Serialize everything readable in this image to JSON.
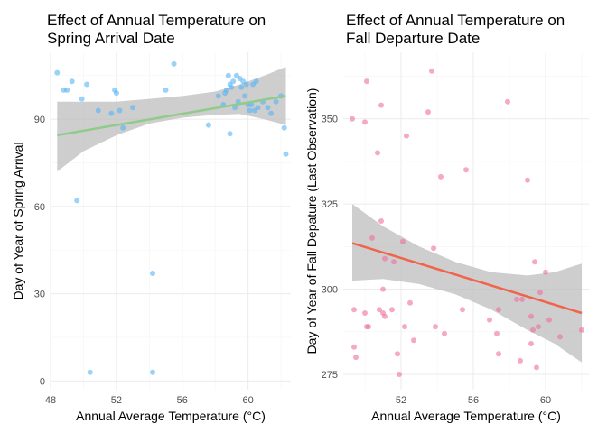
{
  "chart_data": [
    {
      "type": "scatter",
      "title": "Effect of Annual Temperature on\nSpring Arrival Date",
      "xlabel": "Annual Average Temperature (°C)",
      "ylabel": "Day of Year of Spring Arrival",
      "xlim": [
        48,
        62.6
      ],
      "ylim": [
        -3,
        113
      ],
      "xticks": [
        48,
        52,
        56,
        60
      ],
      "yticks": [
        0,
        30,
        60,
        90
      ],
      "grid": true,
      "point_color": "#56B4F5",
      "trend_color": "#8FCB8A",
      "band_color": "#BDBDBD",
      "points": [
        {
          "x": 48.4,
          "y": 106
        },
        {
          "x": 48.8,
          "y": 100
        },
        {
          "x": 49.0,
          "y": 100
        },
        {
          "x": 49.3,
          "y": 103
        },
        {
          "x": 49.6,
          "y": 62
        },
        {
          "x": 49.9,
          "y": 97
        },
        {
          "x": 50.2,
          "y": 102
        },
        {
          "x": 50.4,
          "y": 3
        },
        {
          "x": 50.9,
          "y": 93
        },
        {
          "x": 51.7,
          "y": 92
        },
        {
          "x": 51.9,
          "y": 100
        },
        {
          "x": 52.0,
          "y": 99
        },
        {
          "x": 52.2,
          "y": 93
        },
        {
          "x": 52.4,
          "y": 87
        },
        {
          "x": 53.0,
          "y": 94
        },
        {
          "x": 54.2,
          "y": 37
        },
        {
          "x": 54.2,
          "y": 3
        },
        {
          "x": 55.0,
          "y": 100
        },
        {
          "x": 55.5,
          "y": 109
        },
        {
          "x": 57.6,
          "y": 88
        },
        {
          "x": 58.2,
          "y": 98
        },
        {
          "x": 58.5,
          "y": 95
        },
        {
          "x": 58.6,
          "y": 99
        },
        {
          "x": 58.7,
          "y": 100
        },
        {
          "x": 58.8,
          "y": 105
        },
        {
          "x": 58.9,
          "y": 102
        },
        {
          "x": 58.9,
          "y": 85
        },
        {
          "x": 59.0,
          "y": 101
        },
        {
          "x": 59.1,
          "y": 103
        },
        {
          "x": 59.2,
          "y": 94
        },
        {
          "x": 59.3,
          "y": 105
        },
        {
          "x": 59.4,
          "y": 96
        },
        {
          "x": 59.5,
          "y": 104
        },
        {
          "x": 59.6,
          "y": 101
        },
        {
          "x": 59.7,
          "y": 103
        },
        {
          "x": 59.8,
          "y": 98
        },
        {
          "x": 59.9,
          "y": 102
        },
        {
          "x": 60.0,
          "y": 95
        },
        {
          "x": 60.1,
          "y": 93
        },
        {
          "x": 60.2,
          "y": 95
        },
        {
          "x": 60.3,
          "y": 102
        },
        {
          "x": 60.4,
          "y": 93
        },
        {
          "x": 60.5,
          "y": 103
        },
        {
          "x": 60.6,
          "y": 94
        },
        {
          "x": 60.9,
          "y": 96
        },
        {
          "x": 61.2,
          "y": 94
        },
        {
          "x": 61.4,
          "y": 92
        },
        {
          "x": 61.7,
          "y": 96
        },
        {
          "x": 62.0,
          "y": 98
        },
        {
          "x": 62.2,
          "y": 87
        },
        {
          "x": 62.3,
          "y": 78
        }
      ],
      "trend": {
        "x": [
          48.4,
          62.3
        ],
        "y": [
          84.5,
          98
        ]
      },
      "band": {
        "x": [
          48.4,
          50,
          52,
          54,
          56,
          58,
          59.5,
          61,
          62.3
        ],
        "upper": [
          96,
          96,
          96,
          97,
          98,
          99.5,
          102,
          105,
          108
        ],
        "lower": [
          72,
          79,
          84.5,
          88.5,
          90.5,
          91.5,
          91.8,
          90,
          88
        ]
      }
    },
    {
      "type": "scatter",
      "title": "Effect of Annual Temperature on\nFall Departure Date",
      "xlabel": "Annual Average Temperature (°C)",
      "ylabel": "Day of Year of Fall Depature (Last Observation)",
      "xlim": [
        48.8,
        62.4
      ],
      "ylim": [
        270.5,
        369.5
      ],
      "xticks": [
        52,
        56,
        60
      ],
      "yticks": [
        275,
        300,
        325,
        350
      ],
      "grid": true,
      "point_color": "#EE6FA0",
      "trend_color": "#F2634C",
      "band_color": "#BDBDBD",
      "points": [
        {
          "x": 49.3,
          "y": 350
        },
        {
          "x": 49.4,
          "y": 294
        },
        {
          "x": 49.4,
          "y": 283
        },
        {
          "x": 49.5,
          "y": 280
        },
        {
          "x": 50.0,
          "y": 349
        },
        {
          "x": 50.0,
          "y": 293
        },
        {
          "x": 50.1,
          "y": 289
        },
        {
          "x": 50.1,
          "y": 361
        },
        {
          "x": 50.2,
          "y": 289
        },
        {
          "x": 50.4,
          "y": 315
        },
        {
          "x": 50.7,
          "y": 340
        },
        {
          "x": 50.8,
          "y": 294
        },
        {
          "x": 50.9,
          "y": 320
        },
        {
          "x": 50.9,
          "y": 354
        },
        {
          "x": 51.0,
          "y": 300
        },
        {
          "x": 51.0,
          "y": 293
        },
        {
          "x": 51.1,
          "y": 292
        },
        {
          "x": 51.1,
          "y": 309
        },
        {
          "x": 51.5,
          "y": 294
        },
        {
          "x": 51.6,
          "y": 308
        },
        {
          "x": 51.8,
          "y": 281
        },
        {
          "x": 51.9,
          "y": 275
        },
        {
          "x": 52.1,
          "y": 314
        },
        {
          "x": 52.2,
          "y": 289
        },
        {
          "x": 52.3,
          "y": 345
        },
        {
          "x": 52.5,
          "y": 296
        },
        {
          "x": 52.7,
          "y": 285
        },
        {
          "x": 53.5,
          "y": 352
        },
        {
          "x": 53.7,
          "y": 364
        },
        {
          "x": 53.8,
          "y": 312
        },
        {
          "x": 53.9,
          "y": 289
        },
        {
          "x": 54.2,
          "y": 333
        },
        {
          "x": 54.4,
          "y": 287
        },
        {
          "x": 55.4,
          "y": 294
        },
        {
          "x": 55.6,
          "y": 335
        },
        {
          "x": 56.9,
          "y": 291
        },
        {
          "x": 57.3,
          "y": 287
        },
        {
          "x": 57.4,
          "y": 281
        },
        {
          "x": 57.4,
          "y": 294
        },
        {
          "x": 57.9,
          "y": 355
        },
        {
          "x": 58.4,
          "y": 297
        },
        {
          "x": 58.6,
          "y": 279
        },
        {
          "x": 58.7,
          "y": 297
        },
        {
          "x": 59.0,
          "y": 332
        },
        {
          "x": 59.2,
          "y": 284
        },
        {
          "x": 59.2,
          "y": 292
        },
        {
          "x": 59.3,
          "y": 288
        },
        {
          "x": 59.4,
          "y": 308
        },
        {
          "x": 59.5,
          "y": 277
        },
        {
          "x": 59.6,
          "y": 289
        },
        {
          "x": 59.7,
          "y": 299
        },
        {
          "x": 60.0,
          "y": 305
        },
        {
          "x": 60.2,
          "y": 291
        },
        {
          "x": 60.8,
          "y": 286
        },
        {
          "x": 62.0,
          "y": 288
        }
      ],
      "trend": {
        "x": [
          49.3,
          62.0
        ],
        "y": [
          313.5,
          293
        ]
      },
      "band": {
        "x": [
          49.3,
          51,
          53,
          55,
          57,
          59,
          60.5,
          62.0
        ],
        "upper": [
          325,
          318.5,
          312.5,
          308,
          305,
          304,
          305,
          307.5
        ],
        "lower": [
          302.5,
          303,
          301.5,
          298.5,
          294,
          288,
          284,
          278.5
        ]
      }
    }
  ]
}
